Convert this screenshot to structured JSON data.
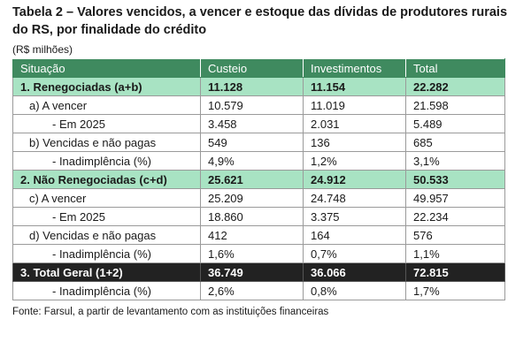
{
  "title": "Tabela 2 – Valores vencidos, a vencer e estoque das dívidas de produtores rurais do RS, por finalidade do crédito",
  "unit": "(R$ milhões)",
  "header": [
    "Situação",
    "Custeio",
    "Investimentos",
    "Total"
  ],
  "rows": [
    {
      "style": "green",
      "indent": 0,
      "cells": [
        "1. Renegociadas (a+b)",
        "11.128",
        "11.154",
        "22.282"
      ]
    },
    {
      "style": "",
      "indent": 1,
      "cells": [
        "a) A vencer",
        "10.579",
        "11.019",
        "21.598"
      ]
    },
    {
      "style": "",
      "indent": 2,
      "cells": [
        "- Em 2025",
        "3.458",
        "2.031",
        "5.489"
      ]
    },
    {
      "style": "",
      "indent": 1,
      "cells": [
        "b) Vencidas e não pagas",
        "549",
        "136",
        "685"
      ]
    },
    {
      "style": "",
      "indent": 2,
      "cells": [
        "- Inadimplência (%)",
        "4,9%",
        "1,2%",
        "3,1%"
      ]
    },
    {
      "style": "green",
      "indent": 0,
      "cells": [
        "2. Não Renegociadas (c+d)",
        "25.621",
        "24.912",
        "50.533"
      ]
    },
    {
      "style": "",
      "indent": 1,
      "cells": [
        "c) A vencer",
        "25.209",
        "24.748",
        "49.957"
      ]
    },
    {
      "style": "",
      "indent": 2,
      "cells": [
        "- Em 2025",
        "18.860",
        "3.375",
        "22.234"
      ]
    },
    {
      "style": "",
      "indent": 1,
      "cells": [
        "d) Vencidas e não pagas",
        "412",
        "164",
        "576"
      ]
    },
    {
      "style": "",
      "indent": 2,
      "cells": [
        "- Inadimplência (%)",
        "1,6%",
        "0,7%",
        "1,1%"
      ]
    },
    {
      "style": "black",
      "indent": 0,
      "cells": [
        "3. Total Geral (1+2)",
        "36.749",
        "36.066",
        "72.815"
      ]
    },
    {
      "style": "",
      "indent": 2,
      "cells": [
        "- Inadimplência (%)",
        "2,6%",
        "0,8%",
        "1,7%"
      ]
    }
  ],
  "source": "Fonte: Farsul, a partir de levantamento com as instituições financeiras",
  "colors": {
    "header_bg": "#3f8a5f",
    "highlight_bg": "#a8e3c3",
    "total_bg": "#222222"
  }
}
